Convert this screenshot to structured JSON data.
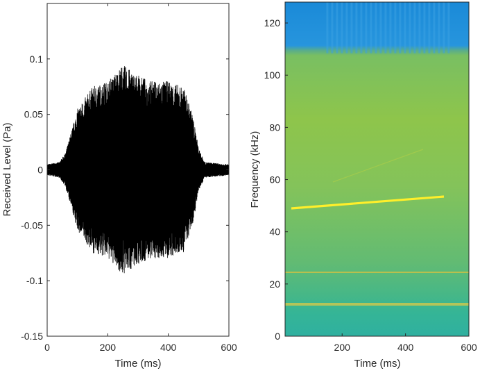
{
  "chart_data": [
    {
      "type": "line",
      "panel": "left",
      "xlabel": "Time (ms)",
      "ylabel": "Received Level (Pa)",
      "xlim": [
        0,
        600
      ],
      "ylim": [
        -0.15,
        0.15
      ],
      "xticks": [
        0,
        200,
        400,
        600
      ],
      "yticks": [
        -0.15,
        -0.1,
        -0.05,
        0,
        0.05,
        0.1
      ],
      "yticklabels": [
        "-0.15",
        "-0.1",
        "-0.05",
        "0",
        "0.05",
        "0.1"
      ],
      "series_color": "#000000",
      "envelope": {
        "time_ms": [
          0,
          40,
          60,
          80,
          100,
          150,
          200,
          250,
          300,
          350,
          400,
          450,
          480,
          500,
          520,
          600
        ],
        "amplitude_pa": [
          0.005,
          0.007,
          0.015,
          0.035,
          0.055,
          0.075,
          0.08,
          0.095,
          0.085,
          0.08,
          0.08,
          0.075,
          0.05,
          0.02,
          0.007,
          0.005
        ]
      }
    },
    {
      "type": "heatmap",
      "panel": "right",
      "xlabel": "Time (ms)",
      "ylabel": "Frequency (kHz)",
      "xlim": [
        20,
        600
      ],
      "ylim": [
        0,
        128
      ],
      "xticks": [
        200,
        400,
        600
      ],
      "yticks": [
        0,
        20,
        40,
        60,
        80,
        100,
        120
      ],
      "colormap": "parula",
      "background_colors": {
        "high_band": "#1e8fe0",
        "mid": "#7cc35a",
        "low": "#3ab88c",
        "harmonic": "#f7c52e",
        "sweep": "#fff23a"
      },
      "features": {
        "sweep": {
          "t_start_ms": 20,
          "t_end_ms": 530,
          "f_start_khz": 49,
          "f_end_khz": 53.5
        },
        "harmonic_trace": {
          "t_start_ms": 180,
          "t_end_ms": 460,
          "f_start_khz": 60,
          "f_end_khz": 72
        },
        "horizontal_lines_khz": [
          24,
          12
        ],
        "high_band_start_khz": 110
      }
    }
  ]
}
